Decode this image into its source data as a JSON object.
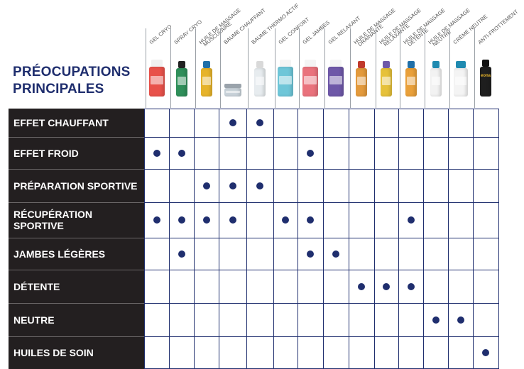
{
  "title": {
    "line1": "PRÉOCUPATIONS",
    "line2": "PRINCIPALES"
  },
  "products": [
    {
      "label": "GEL CRYO",
      "body": "#e8514a",
      "cap": "#f0f0f0",
      "shape": "tube"
    },
    {
      "label": "SPRAY CRYO",
      "body": "#2f8f5a",
      "cap": "#222222",
      "shape": "spray"
    },
    {
      "label": "HUILE DE MASSAGE\nMUSCULAIRE",
      "body": "#e6b32a",
      "cap": "#1f6fa8",
      "shape": "bottle"
    },
    {
      "label": "BAUME CHAUFFANT",
      "body": "#c9d3da",
      "cap": "#9aa3ab",
      "shape": "jar"
    },
    {
      "label": "BAUME THERMO ACTIF",
      "body": "#e7ecef",
      "cap": "#d9d9d9",
      "shape": "tall"
    },
    {
      "label": "GEL CONFORT",
      "body": "#6ec6d8",
      "cap": "#f4f4f4",
      "shape": "tube"
    },
    {
      "label": "GEL JAMBES",
      "body": "#e9727c",
      "cap": "#f4f4f4",
      "shape": "tube"
    },
    {
      "label": "GEL RELAXANT",
      "body": "#6e58a8",
      "cap": "#f4f4f4",
      "shape": "tube"
    },
    {
      "label": "HUILE DE MASSAGE\nDRAINANTE",
      "body": "#e39a3c",
      "cap": "#c0392b",
      "shape": "bottle"
    },
    {
      "label": "HUILE DE MASSAGE\nRELAXANTE",
      "body": "#e6c13a",
      "cap": "#6e58a8",
      "shape": "bottle"
    },
    {
      "label": "HUILE DE MASSAGE\nDÉTENTE",
      "body": "#e9a03a",
      "cap": "#1f6fa8",
      "shape": "bottle"
    },
    {
      "label": "HUILE DE MASSAGE\nNEUTRE",
      "body": "#f2f2f2",
      "cap": "#1f8ab0",
      "shape": "bottle"
    },
    {
      "label": "CRÈME NEUTRE",
      "body": "#f4f4f4",
      "cap": "#1f8ab0",
      "shape": "pump"
    },
    {
      "label": "ANTI-FROTTEMENT",
      "body": "#1e1e1e",
      "cap": "#111111",
      "shape": "stick",
      "print": "eona"
    }
  ],
  "rows": [
    {
      "label": "EFFET CHAUFFANT",
      "dots": [
        3,
        4
      ]
    },
    {
      "label": "EFFET FROID",
      "dots": [
        0,
        1,
        6
      ]
    },
    {
      "label": "PRÉPARATION SPORTIVE",
      "dots": [
        2,
        3,
        4
      ]
    },
    {
      "label": "RÉCUPÉRATION SPORTIVE",
      "dots": [
        0,
        1,
        2,
        3,
        5,
        6,
        10
      ]
    },
    {
      "label": "JAMBES LÉGÈRES",
      "dots": [
        1,
        6,
        7
      ]
    },
    {
      "label": "DÉTENTE",
      "dots": [
        8,
        9,
        10
      ]
    },
    {
      "label": "NEUTRE",
      "dots": [
        11,
        12
      ]
    },
    {
      "label": "HUILES DE SOIN",
      "dots": [
        13
      ]
    }
  ],
  "colors": {
    "navy": "#1f2e6e",
    "label_bg": "#231f20"
  }
}
